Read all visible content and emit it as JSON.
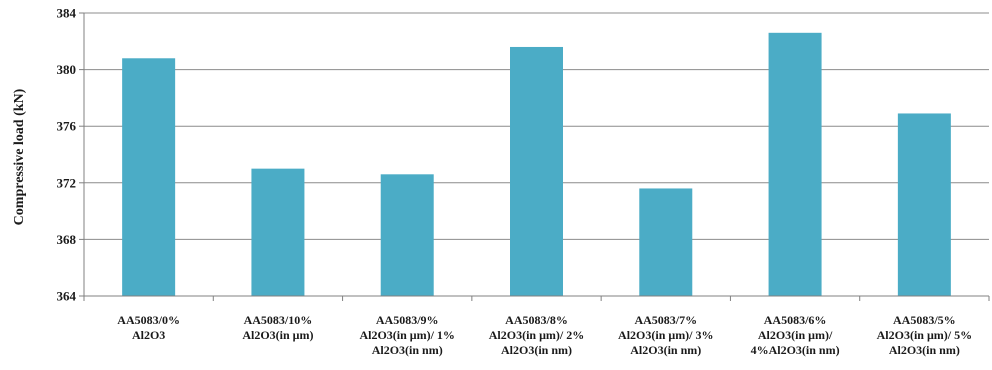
{
  "chart_data": {
    "type": "bar",
    "ylabel": "Compressive load (kN)",
    "xlabel": "",
    "ylim": [
      364,
      384
    ],
    "yticks": [
      364,
      368,
      372,
      376,
      380,
      384
    ],
    "grid": true,
    "categories": [
      [
        "AA5083/0%",
        "Al2O3"
      ],
      [
        "AA5083/10%",
        "Al2O3(in μm)"
      ],
      [
        "AA5083/9%",
        "Al2O3(in μm)/ 1%",
        "Al2O3(in nm)"
      ],
      [
        "AA5083/8%",
        "Al2O3(in μm)/ 2%",
        "Al2O3(in nm)"
      ],
      [
        "AA5083/7%",
        "Al2O3(in μm)/ 3%",
        "Al2O3(in nm)"
      ],
      [
        "AA5083/6%",
        "Al2O3(in μm)/",
        "4%Al2O3(in nm)"
      ],
      [
        "AA5083/5%",
        "Al2O3(in μm)/ 5%",
        "Al2O3(in nm)"
      ]
    ],
    "values": [
      380.8,
      373.0,
      372.6,
      381.6,
      371.6,
      382.6,
      376.9
    ],
    "colors": {
      "bar": "#4BACC6",
      "grid": "#8c8c8c",
      "axis": "#808080"
    }
  }
}
